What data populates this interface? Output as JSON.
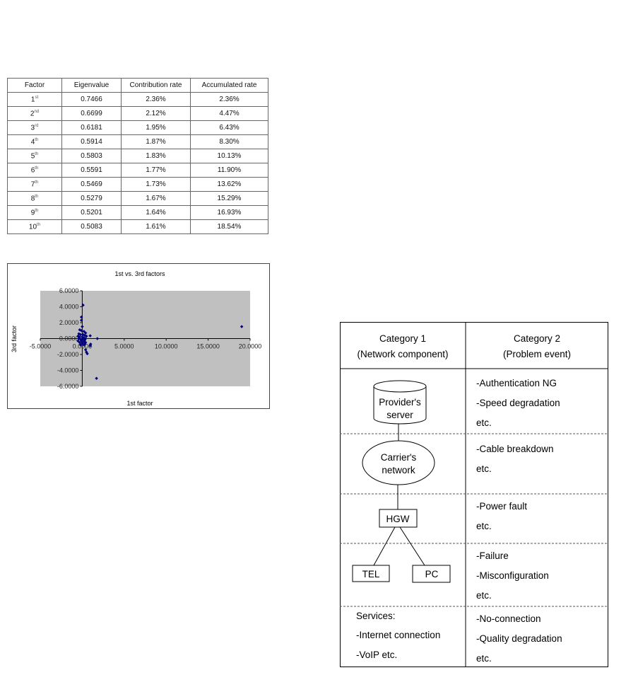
{
  "eigen_table": {
    "headers": [
      "Factor",
      "Eigenvalue",
      "Contribution rate",
      "Accumulated rate"
    ],
    "rows": [
      {
        "n": "1",
        "suf": "st",
        "eig": "0.7466",
        "contrib": "2.36%",
        "acc": "2.36%"
      },
      {
        "n": "2",
        "suf": "nd",
        "eig": "0.6699",
        "contrib": "2.12%",
        "acc": "4.47%"
      },
      {
        "n": "3",
        "suf": "rd",
        "eig": "0.6181",
        "contrib": "1.95%",
        "acc": "6.43%"
      },
      {
        "n": "4",
        "suf": "th",
        "eig": "0.5914",
        "contrib": "1.87%",
        "acc": "8.30%"
      },
      {
        "n": "5",
        "suf": "th",
        "eig": "0.5803",
        "contrib": "1.83%",
        "acc": "10.13%"
      },
      {
        "n": "6",
        "suf": "th",
        "eig": "0.5591",
        "contrib": "1.77%",
        "acc": "11.90%"
      },
      {
        "n": "7",
        "suf": "th",
        "eig": "0.5469",
        "contrib": "1.73%",
        "acc": "13.62%"
      },
      {
        "n": "8",
        "suf": "th",
        "eig": "0.5279",
        "contrib": "1.67%",
        "acc": "15.29%"
      },
      {
        "n": "9",
        "suf": "th",
        "eig": "0.5201",
        "contrib": "1.64%",
        "acc": "16.93%"
      },
      {
        "n": "10",
        "suf": "th",
        "eig": "0.5083",
        "contrib": "1.61%",
        "acc": "18.54%"
      }
    ]
  },
  "chart_data": {
    "type": "scatter",
    "title": "1st vs. 3rd factors",
    "xlabel": "1st factor",
    "ylabel": "3rd factor",
    "xlim": [
      -5,
      20
    ],
    "ylim": [
      -6,
      6
    ],
    "xticks": [
      "-5.0000",
      "0.0000",
      "5.0000",
      "10.0000",
      "15.0000",
      "20.0000"
    ],
    "yticks": [
      "6.0000",
      "4.0000",
      "2.0000",
      "0.0000",
      "-2.0000",
      "-4.0000",
      "-6.0000"
    ],
    "grid": false,
    "plot_background": "#c0c0c0",
    "marker_color": "#000080",
    "points": [
      [
        0.1,
        4.2
      ],
      [
        -0.1,
        2.7
      ],
      [
        -0.1,
        2.3
      ],
      [
        0.0,
        1.5
      ],
      [
        -0.3,
        1.1
      ],
      [
        -0.1,
        1.0
      ],
      [
        0.2,
        0.9
      ],
      [
        0.4,
        0.7
      ],
      [
        -0.4,
        0.6
      ],
      [
        -0.2,
        0.5
      ],
      [
        0.1,
        0.5
      ],
      [
        0.3,
        0.4
      ],
      [
        0.5,
        0.3
      ],
      [
        -0.5,
        0.3
      ],
      [
        -0.3,
        0.2
      ],
      [
        0.0,
        0.2
      ],
      [
        0.2,
        0.1
      ],
      [
        0.4,
        0.0
      ],
      [
        -0.4,
        0.0
      ],
      [
        -0.2,
        -0.1
      ],
      [
        0.1,
        -0.1
      ],
      [
        0.3,
        -0.2
      ],
      [
        -0.5,
        -0.3
      ],
      [
        -0.1,
        -0.3
      ],
      [
        0.2,
        -0.4
      ],
      [
        0.4,
        -0.5
      ],
      [
        -0.3,
        -0.5
      ],
      [
        0.0,
        -0.6
      ],
      [
        0.3,
        -0.7
      ],
      [
        0.2,
        -0.8
      ],
      [
        -0.2,
        -0.8
      ],
      [
        0.95,
        0.35
      ],
      [
        1.8,
        0.0
      ],
      [
        1.0,
        -0.7
      ],
      [
        0.95,
        -0.9
      ],
      [
        0.4,
        -1.4
      ],
      [
        0.5,
        -1.7
      ],
      [
        0.6,
        -1.9
      ],
      [
        1.7,
        -5.0
      ],
      [
        19.0,
        1.5
      ]
    ]
  },
  "diagram": {
    "col1_header": [
      "Category 1",
      "(Network component)"
    ],
    "col2_header": [
      "Category 2",
      "(Problem event)"
    ],
    "nodes": {
      "server": [
        "Provider's",
        "server"
      ],
      "network": [
        "Carrier's",
        "network"
      ],
      "hgw": "HGW",
      "tel": "TEL",
      "pc": "PC"
    },
    "services": [
      "Services:",
      "-Internet connection",
      "-VoIP  etc."
    ],
    "events": [
      [
        "-Authentication NG",
        "-Speed degradation",
        "etc."
      ],
      [
        "-Cable breakdown",
        "etc."
      ],
      [
        "-Power fault",
        "etc."
      ],
      [
        "-Failure",
        "-Misconfiguration",
        "etc."
      ],
      [
        "-No-connection",
        "-Quality degradation",
        "etc."
      ]
    ]
  }
}
